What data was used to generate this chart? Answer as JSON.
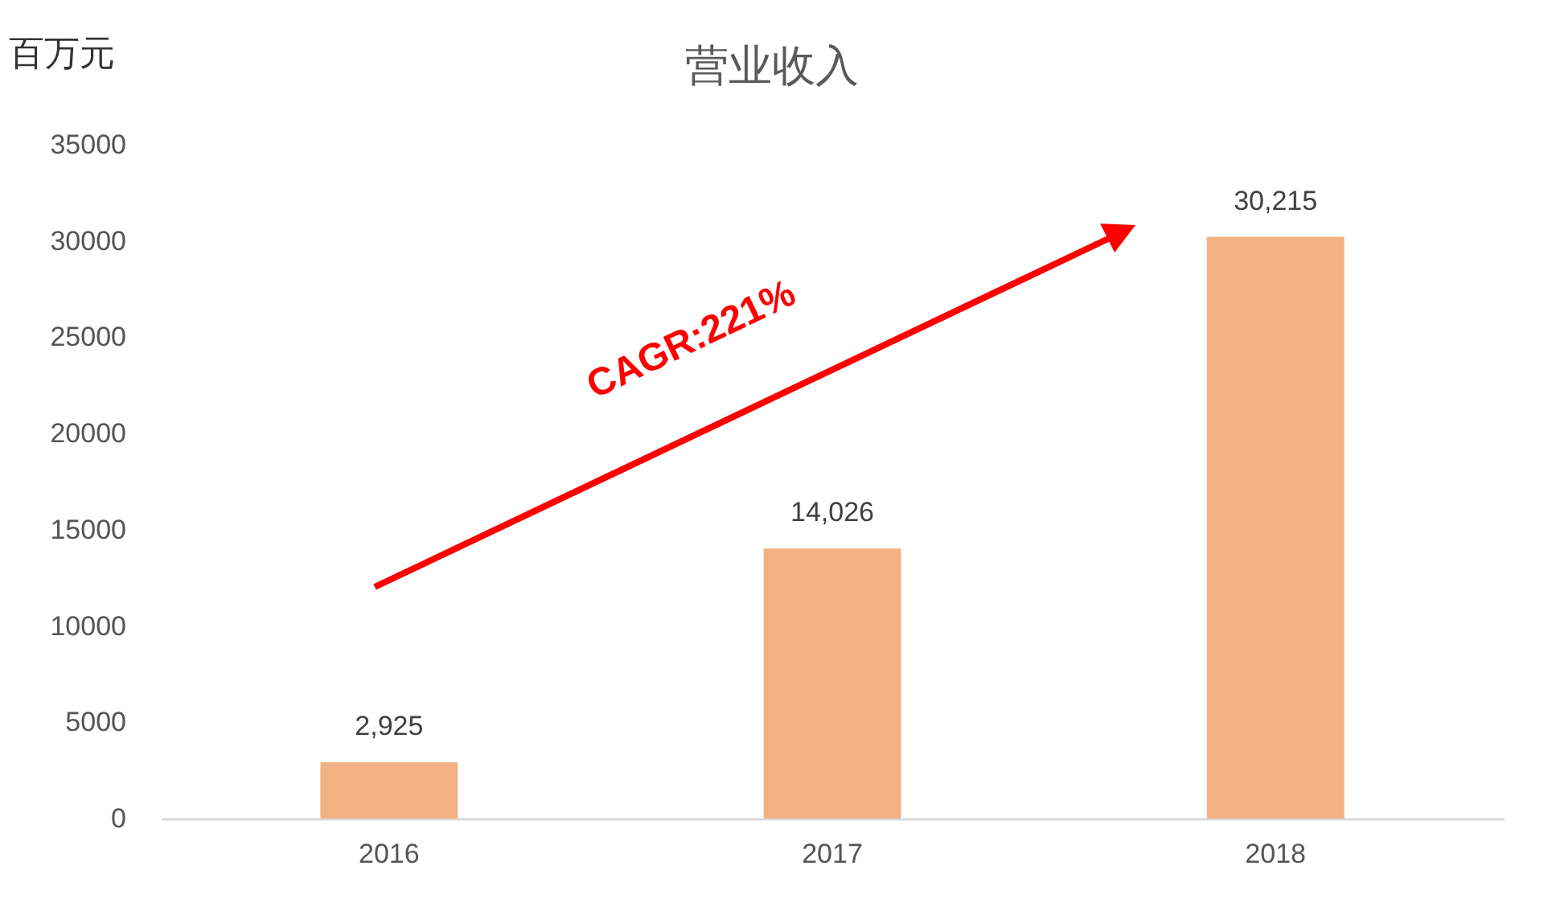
{
  "chart_data": {
    "type": "bar",
    "title": "营业收入",
    "ylabel": "百万元",
    "categories": [
      "2016",
      "2017",
      "2018"
    ],
    "values": [
      2925,
      14026,
      30215
    ],
    "value_labels": [
      "2,925",
      "14,026",
      "30,215"
    ],
    "color": "#f4b183",
    "ylim": [
      0,
      35000
    ],
    "yticks": [
      0,
      5000,
      10000,
      15000,
      20000,
      25000,
      30000,
      35000
    ],
    "grid": false,
    "annotations": [
      "CAGR:221%"
    ]
  }
}
